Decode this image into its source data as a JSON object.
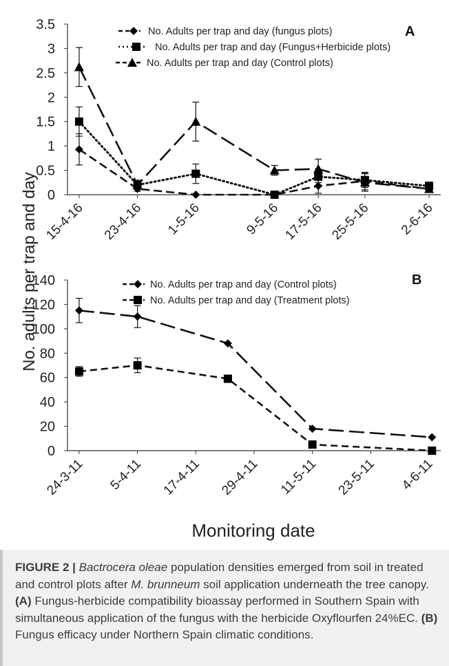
{
  "figure": {
    "y_axis_label": "No. adults per trap and day",
    "x_axis_label": "Monitoring date"
  },
  "chart_data": [
    {
      "panel_label": "A",
      "type": "line",
      "categories": [
        "15-4-16",
        "23-4-16",
        "1-5-16",
        "9-5-16",
        "17-5-16",
        "25-5-16",
        "2-6-16"
      ],
      "x_positions": [
        0,
        1,
        2,
        3.35,
        4.1,
        4.9,
        6.0
      ],
      "x_range": [
        -0.2,
        6.2
      ],
      "ylim": [
        0,
        3.5
      ],
      "y_ticks": [
        "0",
        "0.5",
        "1",
        "1.5",
        "2",
        "2.5",
        "3",
        "3.5"
      ],
      "series": [
        {
          "name": "No. Adults per trap and day (fungus plots)",
          "marker": "diamond",
          "dash": "12,6",
          "x": [
            0,
            1,
            2,
            3.35,
            4.1,
            4.9,
            6.0
          ],
          "values": [
            0.93,
            0.12,
            0.0,
            0.0,
            0.18,
            0.28,
            0.12
          ],
          "errors": [
            0.32,
            0.05,
            0,
            0,
            0.15,
            0.18,
            0.05
          ]
        },
        {
          "name": "No. Adults per trap and day (Fungus+Herbicide plots)",
          "marker": "square",
          "dash": "2,4",
          "x": [
            0,
            1,
            2,
            3.35,
            4.1,
            4.9,
            6.0
          ],
          "values": [
            1.5,
            0.2,
            0.43,
            0.0,
            0.37,
            0.3,
            0.18
          ],
          "errors": [
            0.3,
            0.1,
            0.2,
            0,
            0.12,
            0.15,
            0.08
          ]
        },
        {
          "name": "No. Adults per trap and day (Control plots)",
          "marker": "triangle",
          "dash": "22,8",
          "x": [
            0,
            1,
            2,
            3.35,
            4.1,
            4.9,
            6.0
          ],
          "values": [
            2.62,
            0.2,
            1.5,
            0.5,
            0.53,
            0.25,
            0.12
          ],
          "errors": [
            0.4,
            0.08,
            0.4,
            0.1,
            0.2,
            0.18,
            0.05
          ]
        }
      ]
    },
    {
      "panel_label": "B",
      "type": "line",
      "categories": [
        "24-3-11",
        "5-4-11",
        "17-4-11",
        "29-4-11",
        "11-5-11",
        "23-5-11",
        "4-6-11"
      ],
      "x_positions": [
        0,
        1,
        2,
        3,
        4,
        5,
        6
      ],
      "x_range": [
        -0.2,
        6.2
      ],
      "ylim": [
        0,
        140
      ],
      "y_ticks": [
        "0",
        "20",
        "40",
        "60",
        "80",
        "100",
        "120",
        "140"
      ],
      "series": [
        {
          "name": "No. Adults per trap and day (Control plots)",
          "marker": "diamond",
          "dash": "22,8",
          "x": [
            0,
            1,
            2.55,
            4.0,
            6.05
          ],
          "values": [
            115,
            110,
            88,
            18,
            11
          ],
          "errors": [
            10,
            9,
            0,
            0,
            0
          ]
        },
        {
          "name": "No. Adults per trap and day (Treatment plots)",
          "marker": "square",
          "dash": "10,6",
          "x": [
            0,
            1,
            2.55,
            4.0,
            6.05
          ],
          "values": [
            65,
            70,
            59,
            5,
            0
          ],
          "errors": [
            4,
            6,
            0,
            0,
            0
          ]
        }
      ]
    }
  ],
  "caption": {
    "label": "FIGURE 2 |",
    "species": "Bactrocera oleae",
    "text1": " population densities emerged from soil in treated and control plots after ",
    "fungus": "M. brunneum",
    "text2": " soil application underneath the tree canopy. ",
    "label_a": "(A)",
    "text_a": " Fungus-herbicide compatibility bioassay performed in Southern Spain with simultaneous application of the fungus with the herbicide Oxyflourfen 24%EC. ",
    "label_b": "(B)",
    "text_b": " Fungus efficacy under Northern Spain climatic conditions."
  }
}
